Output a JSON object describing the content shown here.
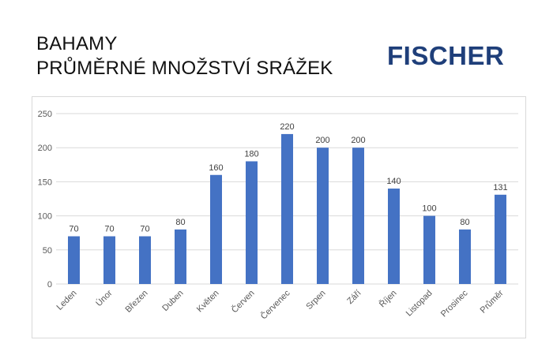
{
  "header": {
    "title_line1": "BAHAMY",
    "title_line2": "PRŮMĚRNÉ MNOŽSTVÍ SRÁŽEK",
    "logo": "FISCHER"
  },
  "colors": {
    "bar": "#4472c4",
    "grid": "#d9d9d9",
    "logo": "#1f3f7a"
  },
  "chart_data": {
    "type": "bar",
    "title": "",
    "xlabel": "",
    "ylabel": "",
    "ylim": [
      0,
      250
    ],
    "yticks": [
      0,
      50,
      100,
      150,
      200,
      250
    ],
    "grid": true,
    "legend": "none",
    "categories": [
      "Leden",
      "Únor",
      "Březen",
      "Duben",
      "Květen",
      "Červen",
      "Červenec",
      "Srpen",
      "Září",
      "Říjen",
      "Listopad",
      "Prosinec",
      "Průměr"
    ],
    "values": [
      70,
      70,
      70,
      80,
      160,
      180,
      220,
      200,
      200,
      140,
      100,
      80,
      131
    ]
  }
}
